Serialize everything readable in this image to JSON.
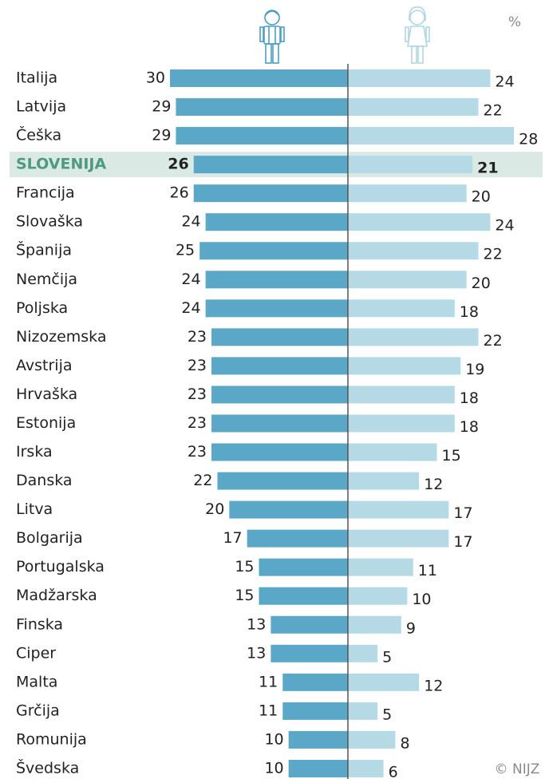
{
  "chart_data": {
    "type": "butterfly",
    "unit_label": "%",
    "credit": "© NIJZ",
    "categories": [
      "Italija",
      "Latvija",
      "Češka",
      "SLOVENIJA",
      "Francija",
      "Slovaška",
      "Španija",
      "Nemčija",
      "Poljska",
      "Nizozemska",
      "Avstrija",
      "Hrvaška",
      "Estonija",
      "Irska",
      "Danska",
      "Litva",
      "Bolgarija",
      "Portugalska",
      "Madžarska",
      "Finska",
      "Ciper",
      "Malta",
      "Grčija",
      "Romunija",
      "Švedska"
    ],
    "highlight": "SLOVENIJA",
    "xlim": [
      0,
      30
    ],
    "series": [
      {
        "color": "#5aa7c7",
        "side": "left",
        "values": [
          30,
          29,
          29,
          26,
          26,
          24,
          25,
          24,
          24,
          23,
          23,
          23,
          23,
          23,
          22,
          20,
          17,
          15,
          15,
          13,
          13,
          11,
          11,
          10,
          10
        ]
      },
      {
        "color": "#b5dae6",
        "side": "right",
        "values": [
          24,
          22,
          28,
          21,
          20,
          24,
          22,
          20,
          18,
          22,
          19,
          18,
          18,
          15,
          12,
          17,
          17,
          11,
          10,
          9,
          5,
          12,
          5,
          8,
          6
        ]
      }
    ]
  }
}
